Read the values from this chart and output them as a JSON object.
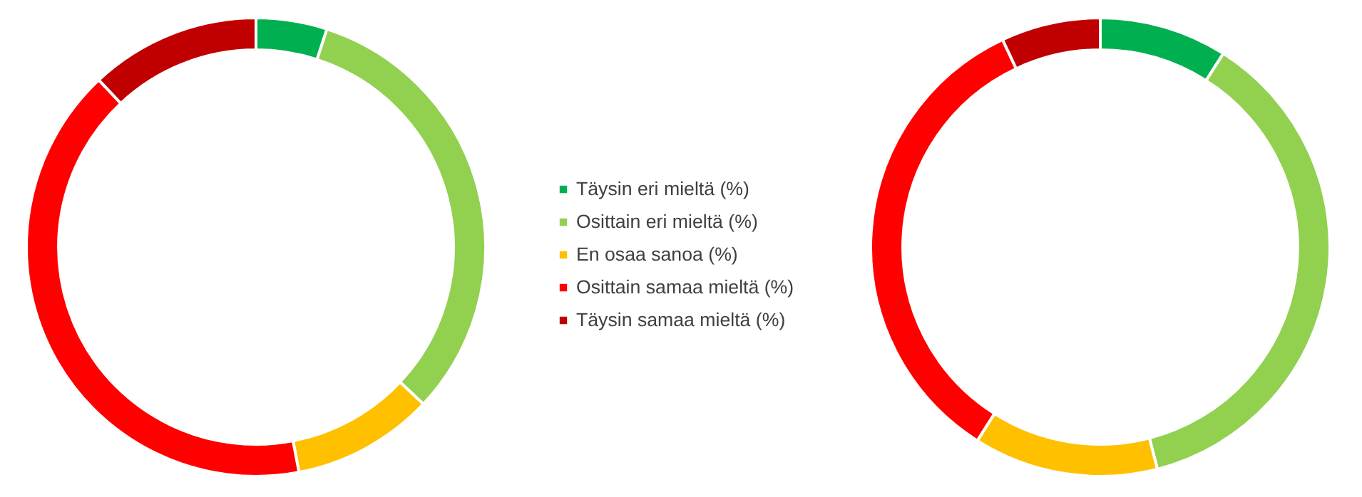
{
  "chart_data": [
    {
      "type": "donut",
      "categories": [
        "Täysin eri mieltä (%)",
        "Osittain eri mieltä (%)",
        "En osaa sanoa (%)",
        "Osittain samaa mieltä (%)",
        "Täysin samaa mieltä (%)"
      ],
      "values": [
        5,
        32,
        10,
        41,
        12
      ],
      "colors": [
        "#00b050",
        "#92d050",
        "#ffc000",
        "#ff0000",
        "#c00000"
      ],
      "legend": "right"
    },
    {
      "type": "donut",
      "categories": [
        null,
        null,
        null,
        null,
        null
      ],
      "values": [
        9,
        37,
        13,
        34,
        7
      ],
      "colors": [
        "#00b050",
        "#92d050",
        "#ffc000",
        "#ff0000",
        "#c00000"
      ]
    }
  ]
}
